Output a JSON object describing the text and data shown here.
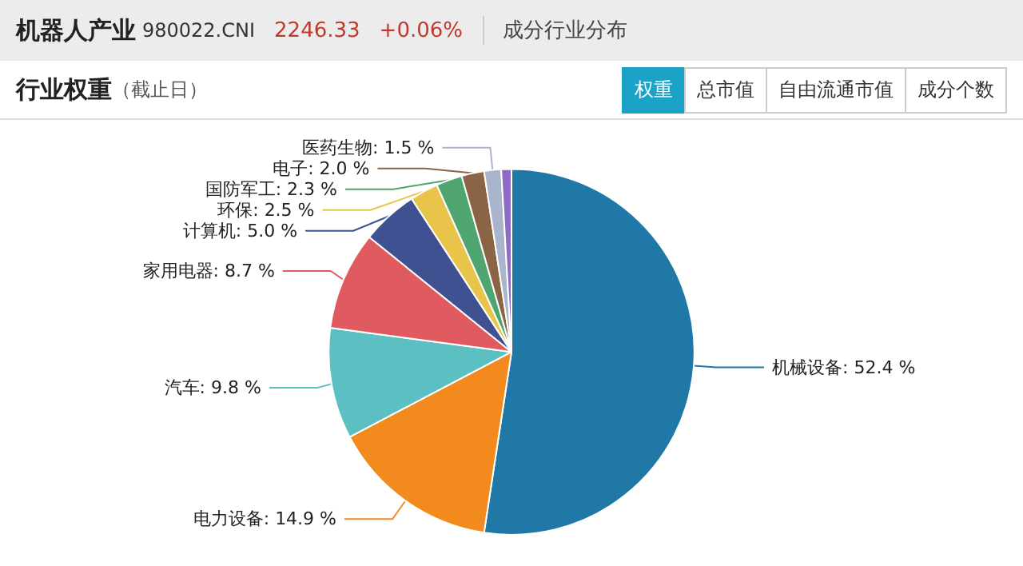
{
  "chart_data": {
    "type": "pie",
    "title": "行业权重",
    "subtitle": "（截止日）",
    "annotations": [
      "机器人产业",
      "980022.CNI",
      "2246.33",
      "+0.06%",
      "成分行业分布",
      "权重",
      "总市值",
      "自由流通市值",
      "成分个数"
    ],
    "categories": [
      "机械设备",
      "电力设备",
      "汽车",
      "家用电器",
      "计算机",
      "环保",
      "国防军工",
      "电子",
      "医药生物",
      null
    ],
    "values": [
      52.4,
      14.9,
      9.8,
      8.7,
      5.0,
      2.5,
      2.3,
      2.0,
      1.5,
      0.9
    ],
    "colors": [
      "#2078a6",
      "#f38a1d",
      "#5cbfc1",
      "#e05b5f",
      "#3f5191",
      "#e9c44b",
      "#4fa56f",
      "#8b6345",
      "#a9b5cc",
      "#8e6bc4"
    ],
    "value_labels": [
      ": 52.4 %",
      ": 14.9 %",
      ": 9.8 %",
      ": 8.7 %",
      ": 5.0 %",
      ": 2.5 %",
      ": 2.3 %",
      ": 2.0 %",
      ": 1.5 %",
      null
    ],
    "legend": false
  }
}
